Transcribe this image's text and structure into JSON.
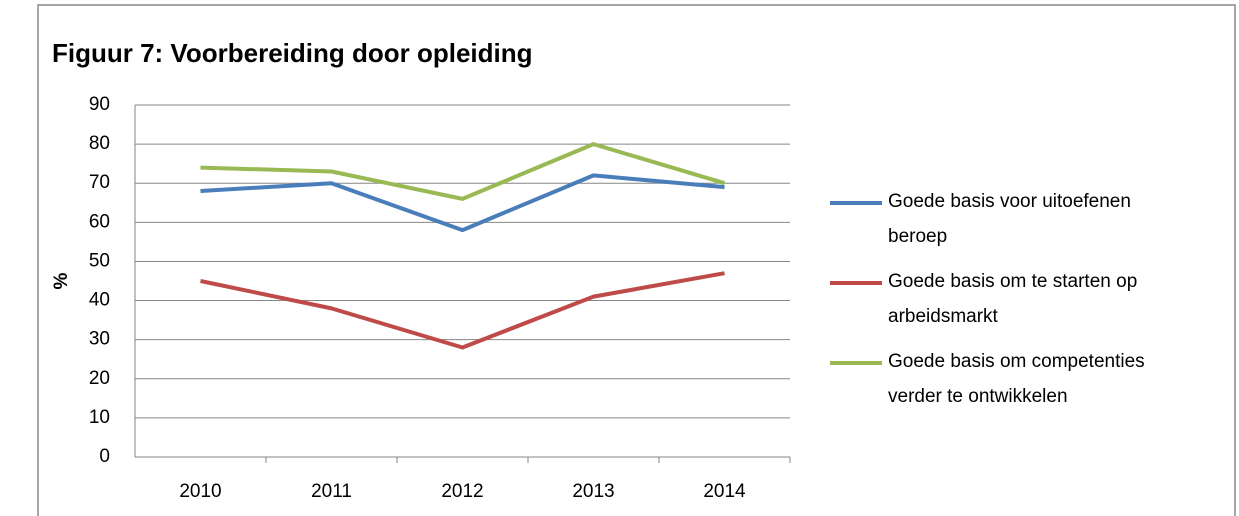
{
  "chart_data": {
    "type": "line",
    "title": "Figuur 7: Voorbereiding door opleiding",
    "ylabel": "%",
    "categories": [
      "2010",
      "2011",
      "2012",
      "2013",
      "2014"
    ],
    "series": [
      {
        "name": "Goede basis voor uitoefenen beroep",
        "color": "#4a7ebb",
        "values": [
          68,
          70,
          58,
          72,
          69
        ]
      },
      {
        "name": "Goede basis om te starten op arbeidsmarkt",
        "color": "#be4b48",
        "values": [
          45,
          38,
          28,
          41,
          47
        ]
      },
      {
        "name": "Goede basis om competenties verder te ontwikkelen",
        "color": "#98b954",
        "values": [
          74,
          73,
          66,
          80,
          70
        ]
      }
    ],
    "ylim": [
      0,
      90
    ],
    "yticks": [
      0,
      10,
      20,
      30,
      40,
      50,
      60,
      70,
      80,
      90
    ],
    "grid": true,
    "legend": "right"
  }
}
